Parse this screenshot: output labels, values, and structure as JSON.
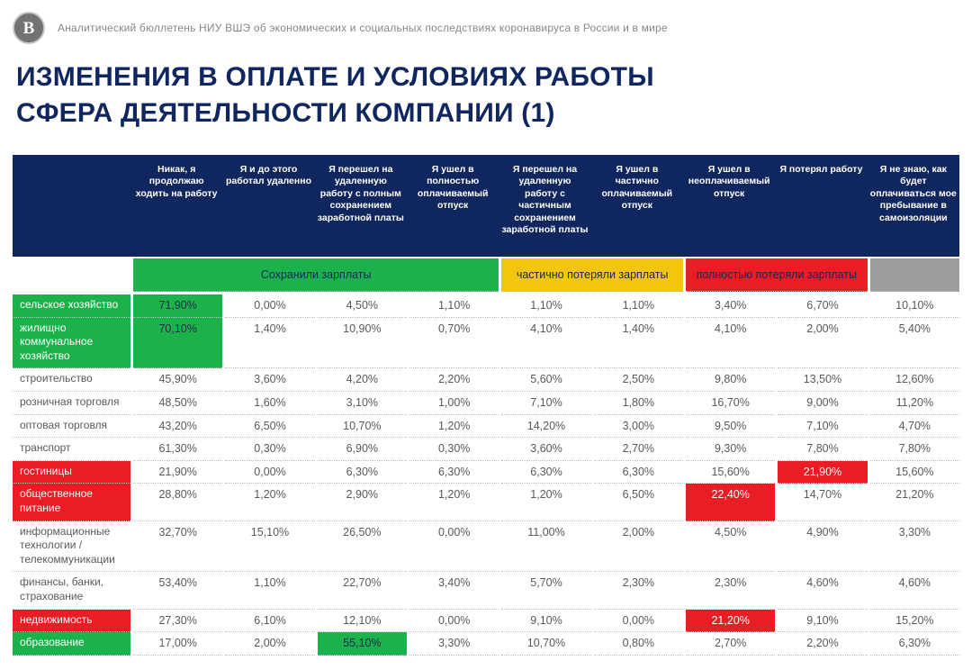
{
  "colors": {
    "navy": "#10265E",
    "green": "#1CB24B",
    "yellow": "#F3C50F",
    "red": "#EA1C24",
    "gray": "#9D9D9C"
  },
  "masthead": {
    "logo": "hse-logo",
    "logo_glyph": "В",
    "text": "Аналитический бюллетень НИУ ВШЭ об экономических и социальных последствиях коронавируса в России и в мире"
  },
  "title": {
    "line1": "ИЗМЕНЕНИЯ В ОПЛАТЕ И УСЛОВИЯХ РАБОТЫ",
    "line2": "СФЕРА ДЕЯТЕЛЬНОСТИ КОМПАНИИ (1)"
  },
  "table": {
    "columns": [
      "Никак, я продолжаю ходить на работу",
      "Я и до этого работал удаленно",
      "Я перешел на удаленную работу с полным сохранением заработной платы",
      "Я ушел в полностью оплачиваемый отпуск",
      "Я перешел на удаленную работу с частичным сохранением заработной платы",
      "Я ушел в частично оплачиваемый отпуск",
      "Я ушел в неоплачиваемый отпуск",
      "Я потерял работу",
      "Я не знаю, как будет оплачиваться мое пребывание в самоизоляции"
    ],
    "legend": [
      {
        "label": "Сохранили зарплаты",
        "color": "green",
        "span": 4
      },
      {
        "label": "частично потеряли зарплаты",
        "color": "yellow",
        "span": 2
      },
      {
        "label": "полностью потеряли зарплаты",
        "color": "red",
        "span": 2
      },
      {
        "label": "",
        "color": "gray",
        "span": 1
      }
    ],
    "rows": [
      {
        "label": "сельское хозяйство",
        "label_highlight": "green",
        "highlights": {
          "0": "green"
        },
        "values": [
          "71,90%",
          "0,00%",
          "4,50%",
          "1,10%",
          "1,10%",
          "1,10%",
          "3,40%",
          "6,70%",
          "10,10%"
        ]
      },
      {
        "label": "жилищно коммунальное хозяйство",
        "label_highlight": "green",
        "highlights": {
          "0": "green"
        },
        "values": [
          "70,10%",
          "1,40%",
          "10,90%",
          "0,70%",
          "4,10%",
          "1,40%",
          "4,10%",
          "2,00%",
          "5,40%"
        ]
      },
      {
        "label": "строительство",
        "label_highlight": null,
        "highlights": {},
        "values": [
          "45,90%",
          "3,60%",
          "4,20%",
          "2,20%",
          "5,60%",
          "2,50%",
          "9,80%",
          "13,50%",
          "12,60%"
        ]
      },
      {
        "label": "розничная торговля",
        "label_highlight": null,
        "highlights": {},
        "values": [
          "48,50%",
          "1,60%",
          "3,10%",
          "1,00%",
          "7,10%",
          "1,80%",
          "16,70%",
          "9,00%",
          "11,20%"
        ]
      },
      {
        "label": "оптовая торговля",
        "label_highlight": null,
        "highlights": {},
        "values": [
          "43,20%",
          "6,50%",
          "10,70%",
          "1,20%",
          "14,20%",
          "3,00%",
          "9,50%",
          "7,10%",
          "4,70%"
        ]
      },
      {
        "label": "транспорт",
        "label_highlight": null,
        "highlights": {},
        "values": [
          "61,30%",
          "0,30%",
          "6,90%",
          "0,30%",
          "3,60%",
          "2,70%",
          "9,30%",
          "7,80%",
          "7,80%"
        ]
      },
      {
        "label": "гостиницы",
        "label_highlight": "red",
        "highlights": {
          "7": "red"
        },
        "values": [
          "21,90%",
          "0,00%",
          "6,30%",
          "6,30%",
          "6,30%",
          "6,30%",
          "15,60%",
          "21,90%",
          "15,60%"
        ]
      },
      {
        "label": "общественное питание",
        "label_highlight": "red",
        "highlights": {
          "6": "red"
        },
        "values": [
          "28,80%",
          "1,20%",
          "2,90%",
          "1,20%",
          "1,20%",
          "6,50%",
          "22,40%",
          "14,70%",
          "21,20%"
        ]
      },
      {
        "label": "информационные технологии / телекоммуникации",
        "label_highlight": null,
        "highlights": {},
        "values": [
          "32,70%",
          "15,10%",
          "26,50%",
          "0,00%",
          "11,00%",
          "2,00%",
          "4,50%",
          "4,90%",
          "3,30%"
        ]
      },
      {
        "label": "финансы, банки, страхование",
        "label_highlight": null,
        "highlights": {},
        "values": [
          "53,40%",
          "1,10%",
          "22,70%",
          "3,40%",
          "5,70%",
          "2,30%",
          "2,30%",
          "4,60%",
          "4,60%"
        ]
      },
      {
        "label": "недвижимость",
        "label_highlight": "red",
        "highlights": {
          "6": "red"
        },
        "values": [
          "27,30%",
          "6,10%",
          "12,10%",
          "0,00%",
          "9,10%",
          "0,00%",
          "21,20%",
          "9,10%",
          "15,20%"
        ]
      },
      {
        "label": "образование",
        "label_highlight": "green",
        "highlights": {
          "2": "green"
        },
        "values": [
          "17,00%",
          "2,00%",
          "55,10%",
          "3,30%",
          "10,70%",
          "0,80%",
          "2,70%",
          "2,20%",
          "6,30%"
        ]
      }
    ]
  },
  "chart_data": {
    "type": "table",
    "title": "ИЗМЕНЕНИЯ В ОПЛАТЕ И УСЛОВИЯХ РАБОТЫ — СФЕРА ДЕЯТЕЛЬНОСТИ КОМПАНИИ (1)",
    "units": "%",
    "columns": [
      "Никак, я продолжаю ходить на работу",
      "Я и до этого работал удаленно",
      "Я перешел на удаленную работу с полным сохранением заработной платы",
      "Я ушел в полностью оплачиваемый отпуск",
      "Я перешел на удаленную работу с частичным сохранением заработной платы",
      "Я ушел в частично оплачиваемый отпуск",
      "Я ушел в неоплачиваемый отпуск",
      "Я потерял работу",
      "Я не знаю, как будет оплачиваться мое пребывание в самоизоляции"
    ],
    "column_groups": [
      {
        "label": "Сохранили зарплаты",
        "color": "#1CB24B",
        "column_indexes": [
          0,
          1,
          2,
          3
        ]
      },
      {
        "label": "частично потеряли зарплаты",
        "color": "#F3C50F",
        "column_indexes": [
          4,
          5
        ]
      },
      {
        "label": "полностью потеряли зарплаты",
        "color": "#EA1C24",
        "column_indexes": [
          6,
          7
        ]
      },
      {
        "label": "",
        "color": "#9D9D9C",
        "column_indexes": [
          8
        ]
      }
    ],
    "row_labels": [
      "сельское хозяйство",
      "жилищно коммунальное хозяйство",
      "строительство",
      "розничная торговля",
      "оптовая торговля",
      "транспорт",
      "гостиницы",
      "общественное питание",
      "информационные технологии / телекоммуникации",
      "финансы, банки, страхование",
      "недвижимость",
      "образование"
    ],
    "values": [
      [
        71.9,
        0.0,
        4.5,
        1.1,
        1.1,
        1.1,
        3.4,
        6.7,
        10.1
      ],
      [
        70.1,
        1.4,
        10.9,
        0.7,
        4.1,
        1.4,
        4.1,
        2.0,
        5.4
      ],
      [
        45.9,
        3.6,
        4.2,
        2.2,
        5.6,
        2.5,
        9.8,
        13.5,
        12.6
      ],
      [
        48.5,
        1.6,
        3.1,
        1.0,
        7.1,
        1.8,
        16.7,
        9.0,
        11.2
      ],
      [
        43.2,
        6.5,
        10.7,
        1.2,
        14.2,
        3.0,
        9.5,
        7.1,
        4.7
      ],
      [
        61.3,
        0.3,
        6.9,
        0.3,
        3.6,
        2.7,
        9.3,
        7.8,
        7.8
      ],
      [
        21.9,
        0.0,
        6.3,
        6.3,
        6.3,
        6.3,
        15.6,
        21.9,
        15.6
      ],
      [
        28.8,
        1.2,
        2.9,
        1.2,
        1.2,
        6.5,
        22.4,
        14.7,
        21.2
      ],
      [
        32.7,
        15.1,
        26.5,
        0.0,
        11.0,
        2.0,
        4.5,
        4.9,
        3.3
      ],
      [
        53.4,
        1.1,
        22.7,
        3.4,
        5.7,
        2.3,
        2.3,
        4.6,
        4.6
      ],
      [
        27.3,
        6.1,
        12.1,
        0.0,
        9.1,
        0.0,
        21.2,
        9.1,
        15.2
      ],
      [
        17.0,
        2.0,
        55.1,
        3.3,
        10.7,
        0.8,
        2.7,
        2.2,
        6.3
      ]
    ],
    "highlighted_cells": [
      {
        "row": "сельское хозяйство",
        "column_index": 0,
        "color": "green"
      },
      {
        "row": "жилищно коммунальное хозяйство",
        "column_index": 0,
        "color": "green"
      },
      {
        "row": "гостиницы",
        "column_index": 7,
        "color": "red"
      },
      {
        "row": "общественное питание",
        "column_index": 6,
        "color": "red"
      },
      {
        "row": "недвижимость",
        "column_index": 6,
        "color": "red"
      },
      {
        "row": "образование",
        "column_index": 2,
        "color": "green"
      }
    ]
  }
}
